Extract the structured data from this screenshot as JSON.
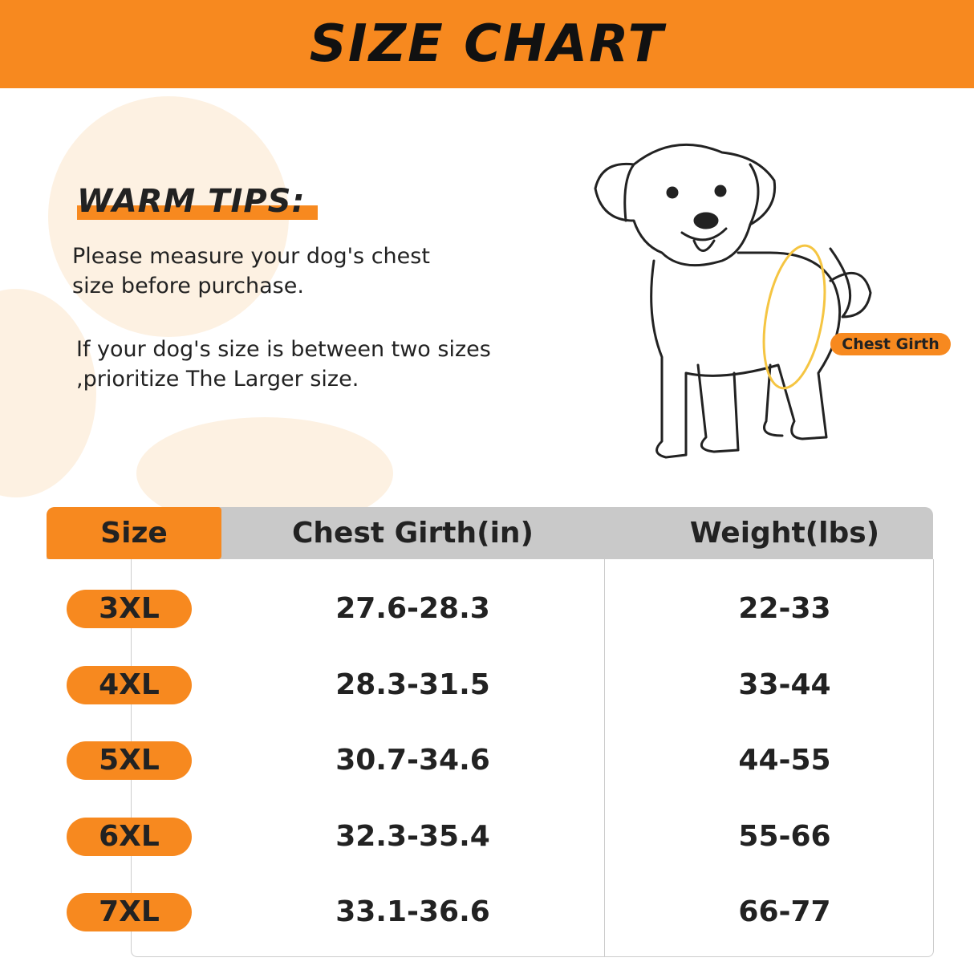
{
  "header": {
    "title": "SIZE CHART"
  },
  "tips": {
    "heading": "WARM TIPS:",
    "paragraphs": [
      {
        "lines": [
          "Please measure your dog's chest",
          "size before purchase."
        ]
      },
      {
        "lines": [
          "If your dog's size is between two sizes",
          ",prioritize The Larger size."
        ]
      }
    ]
  },
  "illustration": {
    "label": "Chest Girth"
  },
  "table": {
    "columns": [
      "Size",
      "Chest Girth(in)",
      "Weight(lbs)"
    ],
    "rows": [
      [
        "3XL",
        "27.6-28.3",
        "22-33"
      ],
      [
        "4XL",
        "28.3-31.5",
        "33-44"
      ],
      [
        "5XL",
        "30.7-34.6",
        "44-55"
      ],
      [
        "6XL",
        "32.3-35.4",
        "55-66"
      ],
      [
        "7XL",
        "33.1-36.6",
        "66-77"
      ]
    ]
  }
}
